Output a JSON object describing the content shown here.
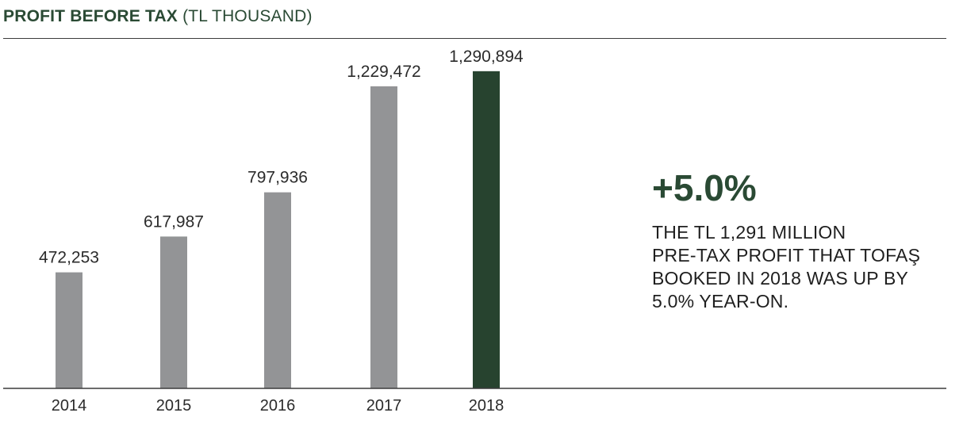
{
  "header": {
    "title_bold": "PROFIT BEFORE TAX",
    "title_unit": "(TL THOUSAND)"
  },
  "chart_data": {
    "type": "bar",
    "categories": [
      "2014",
      "2015",
      "2016",
      "2017",
      "2018"
    ],
    "values": [
      472253,
      617987,
      797936,
      1229472,
      1290894
    ],
    "value_labels": [
      "472,253",
      "617,987",
      "797,936",
      "1,229,472",
      "1,290,894"
    ],
    "ylim": [
      0,
      1400000
    ],
    "grid": false,
    "legend": "none",
    "colors": {
      "default_bar": "#939496",
      "highlight_bar": "#27432f"
    },
    "highlight_index": 4
  },
  "highlight": {
    "percent": "+5.0%",
    "description_lines": [
      "THE TL 1,291 MILLION",
      "PRE-TAX PROFIT THAT TOFAŞ",
      "BOOKED IN 2018 WAS UP BY",
      "5.0% YEAR-ON."
    ]
  }
}
